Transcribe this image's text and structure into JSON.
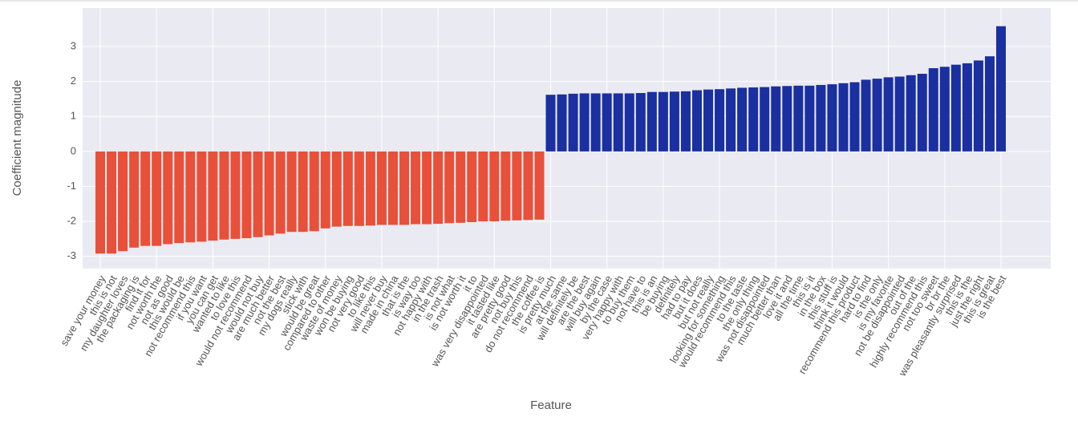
{
  "chart_data": {
    "type": "bar",
    "xlabel": "Feature",
    "ylabel": "Coefficient magnitude",
    "categories": [
      "save your money",
      "this is not",
      "my daughter loves",
      "the packaging is",
      "find it for",
      "not worth the",
      "not as good",
      "this would be",
      "not recommend this",
      "if you want",
      "you can get",
      "wanted to like",
      "to love this",
      "would not recommend",
      "would not buy",
      "are much better",
      "not the best",
      "my dogs really",
      "stick with",
      "would be great",
      "compared to other",
      "waste of money",
      "won be buying",
      "not very good",
      "to like this",
      "will never buy",
      "made in china",
      "that is the",
      "is way too",
      "not happy with",
      "in the trash",
      "is not what",
      "is not worth it",
      "it to",
      "was very disappointed",
      "it tasted like",
      "are pretty good",
      "not buy this",
      "do not recommend",
      "the coffee is",
      "is pretty much",
      "at the same",
      "will definitely be",
      "are the best",
      "will buy again",
      "by the case",
      "very happy with",
      "to buy them",
      "not have to",
      "this is an",
      "be buying",
      "definitely",
      "had to pay",
      "but it does",
      "but not really",
      "looking for something",
      "would recommend this",
      "to the taste",
      "the only thing",
      "was not disappointed",
      "much better than",
      "love it and",
      "all the time",
      "this is it",
      "in the box",
      "this stuff is",
      "think it would",
      "recommend this product",
      "hard to find",
      "is the only",
      "is my favorite",
      "not be disappointed",
      "out of the",
      "highly recommend this",
      "not too sweet",
      "br br the",
      "was pleasantly surprised",
      "this is the",
      "just the right",
      "this is great",
      "is the best"
    ],
    "values": [
      -2.92,
      -2.92,
      -2.85,
      -2.75,
      -2.7,
      -2.7,
      -2.65,
      -2.62,
      -2.6,
      -2.58,
      -2.55,
      -2.52,
      -2.5,
      -2.48,
      -2.45,
      -2.4,
      -2.35,
      -2.3,
      -2.3,
      -2.28,
      -2.2,
      -2.15,
      -2.13,
      -2.13,
      -2.12,
      -2.1,
      -2.1,
      -2.1,
      -2.08,
      -2.08,
      -2.07,
      -2.05,
      -2.04,
      -2.02,
      -2.0,
      -2.0,
      -1.98,
      -1.97,
      -1.96,
      -1.95,
      1.62,
      1.63,
      1.65,
      1.66,
      1.66,
      1.66,
      1.66,
      1.66,
      1.67,
      1.7,
      1.7,
      1.71,
      1.72,
      1.75,
      1.77,
      1.78,
      1.8,
      1.82,
      1.83,
      1.84,
      1.86,
      1.87,
      1.88,
      1.88,
      1.9,
      1.92,
      1.95,
      1.98,
      2.05,
      2.08,
      2.12,
      2.14,
      2.18,
      2.22,
      2.38,
      2.42,
      2.48,
      2.52,
      2.6,
      2.72,
      3.58
    ],
    "colors": {
      "negative": "#e8503a",
      "positive": "#1a2fa0"
    },
    "ylim": [
      -3.35,
      4.1
    ],
    "yticks": [
      -3,
      -2,
      -1,
      0,
      1,
      2,
      3
    ],
    "grid": true
  }
}
